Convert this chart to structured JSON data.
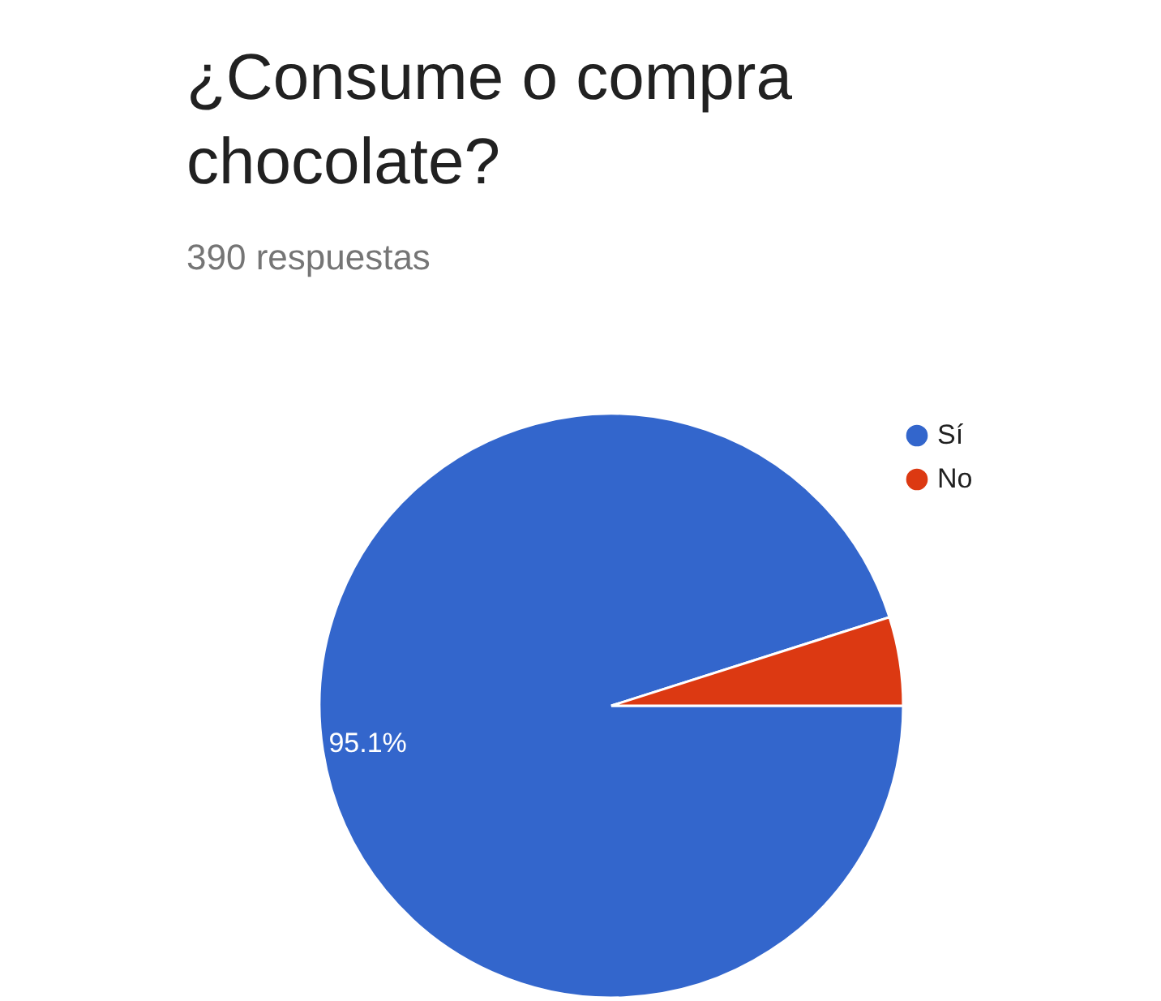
{
  "chart_data": {
    "type": "pie",
    "title": "¿Consume o compra chocolate?",
    "subtitle": "390 respuestas",
    "categories": [
      "Sí",
      "No"
    ],
    "values": [
      95.1,
      4.9
    ],
    "colors": [
      "#3366cc",
      "#dc3912"
    ],
    "value_labels": [
      "95.1%",
      null
    ],
    "legend": "top right"
  }
}
